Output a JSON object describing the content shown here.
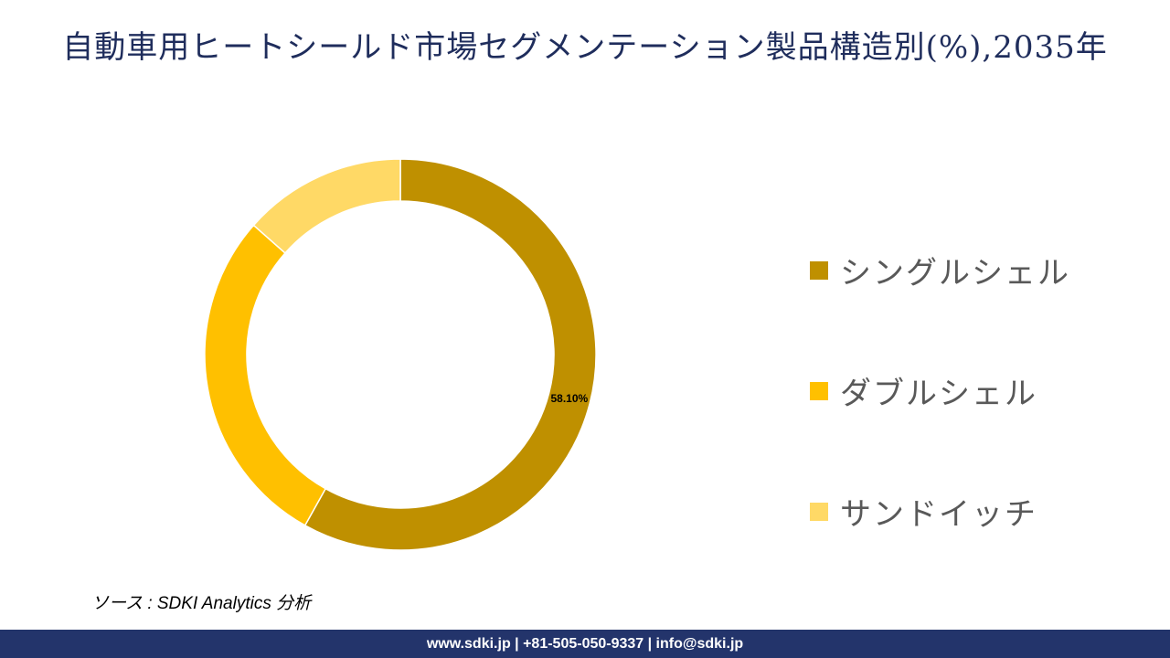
{
  "title": "自動車用ヒートシールド市場セグメンテーション製品構造別(%),2035年",
  "chart_data": {
    "type": "pie",
    "variant": "donut",
    "categories": [
      "シングルシェル",
      "ダブルシェル",
      "サンドイッチ"
    ],
    "values": [
      58.1,
      28.4,
      13.5
    ],
    "data_labels": [
      "58.10%",
      "",
      ""
    ],
    "colors": [
      "#bf9000",
      "#ffc000",
      "#ffd966"
    ],
    "legend_position": "right"
  },
  "source": "ソース : SDKI Analytics 分析",
  "footer": "www.sdki.jp | +81-505-050-9337 | info@sdki.jp"
}
